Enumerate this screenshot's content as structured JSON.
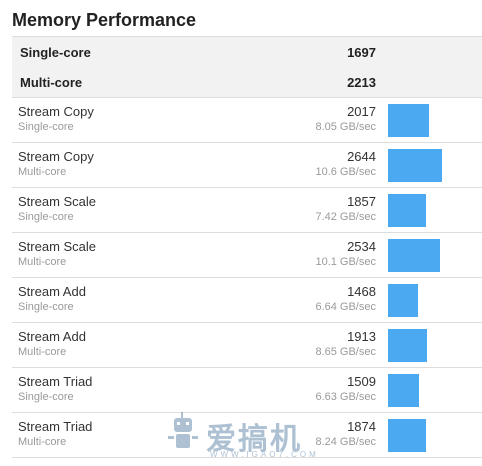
{
  "title": "Memory Performance",
  "summary": [
    {
      "label": "Single-core",
      "score": "1697"
    },
    {
      "label": "Multi-core",
      "score": "2213"
    }
  ],
  "rows": [
    {
      "name": "Stream Copy",
      "mode": "Single-core",
      "score": "2017",
      "rate": "8.05 GB/sec",
      "value": 2017
    },
    {
      "name": "Stream Copy",
      "mode": "Multi-core",
      "score": "2644",
      "rate": "10.6 GB/sec",
      "value": 2644
    },
    {
      "name": "Stream Scale",
      "mode": "Single-core",
      "score": "1857",
      "rate": "7.42 GB/sec",
      "value": 1857
    },
    {
      "name": "Stream Scale",
      "mode": "Multi-core",
      "score": "2534",
      "rate": "10.1 GB/sec",
      "value": 2534
    },
    {
      "name": "Stream Add",
      "mode": "Single-core",
      "score": "1468",
      "rate": "6.64 GB/sec",
      "value": 1468
    },
    {
      "name": "Stream Add",
      "mode": "Multi-core",
      "score": "1913",
      "rate": "8.65 GB/sec",
      "value": 1913
    },
    {
      "name": "Stream Triad",
      "mode": "Single-core",
      "score": "1509",
      "rate": "6.63 GB/sec",
      "value": 1509
    },
    {
      "name": "Stream Triad",
      "mode": "Multi-core",
      "score": "1874",
      "rate": "8.24 GB/sec",
      "value": 1874
    }
  ],
  "bar_color": "#4aa9f0",
  "bar_max_value": 2644,
  "watermark": {
    "text": "爱搞机",
    "sub": "WWW.IGAO7.COM",
    "icon": "robot-logo-icon"
  }
}
